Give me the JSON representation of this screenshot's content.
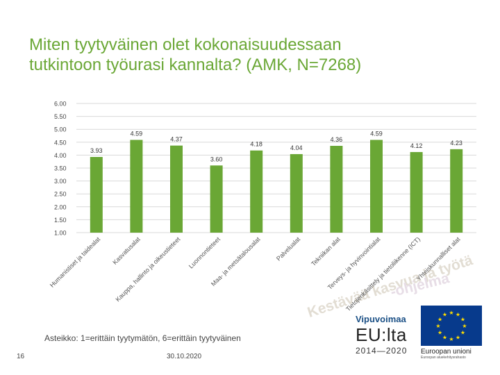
{
  "slide": {
    "title_lines": [
      "Miten tyytyväinen olet kokonaisuudessaan",
      "tutkintoon työurasi kannalta? (AMK, N=7268)"
    ],
    "scale_note": "Asteikko: 1=erittäin tyytymätön, 6=erittäin tyytyväinen",
    "page_number": "16",
    "date": "30.10.2020",
    "background_slogan": "Kestävää kasvua ja työtä",
    "background_slogan_2": "-ohjelma",
    "logo_text": "Vipuvoimaa",
    "logo_eu": "EU:lta",
    "logo_years": "2014—2020",
    "eu_label": "Euroopan unioni",
    "eu_sublabel": "Euroopan aluekehitysrahasto",
    "colors": {
      "title": "#6aa735",
      "bar": "#6aa735",
      "grid": "#d9d9d9",
      "eu_blue": "#073a8c",
      "eu_star": "#ffdd00"
    }
  },
  "chart_data": {
    "type": "bar",
    "ylim": [
      1.0,
      6.0
    ],
    "yticks": [
      "1.00",
      "1.50",
      "2.00",
      "2.50",
      "3.00",
      "3.50",
      "4.00",
      "4.50",
      "5.00",
      "5.50",
      "6.00"
    ],
    "grid": true,
    "categories": [
      "Humanistiset ja taidealat",
      "Kasvatusalat",
      "Kauppa, hallinto ja oikeustieteet",
      "Luonnontieteet",
      "Maa- ja metsätalousalat",
      "Palvelualat",
      "Tekniikan alat",
      "Terveys- ja hyvinvointialat",
      "Tietojenkäsittely ja tietoliikenne (ICT)",
      "Yhteiskunnalliset alat"
    ],
    "values": [
      3.93,
      4.59,
      4.37,
      3.6,
      4.18,
      4.04,
      4.36,
      4.59,
      4.12,
      4.23
    ],
    "data_labels": [
      "3.93",
      "4.59",
      "4.37",
      "3.60",
      "4.18",
      "4.04",
      "4.36",
      "4.59",
      "4.12",
      "4.23"
    ]
  }
}
